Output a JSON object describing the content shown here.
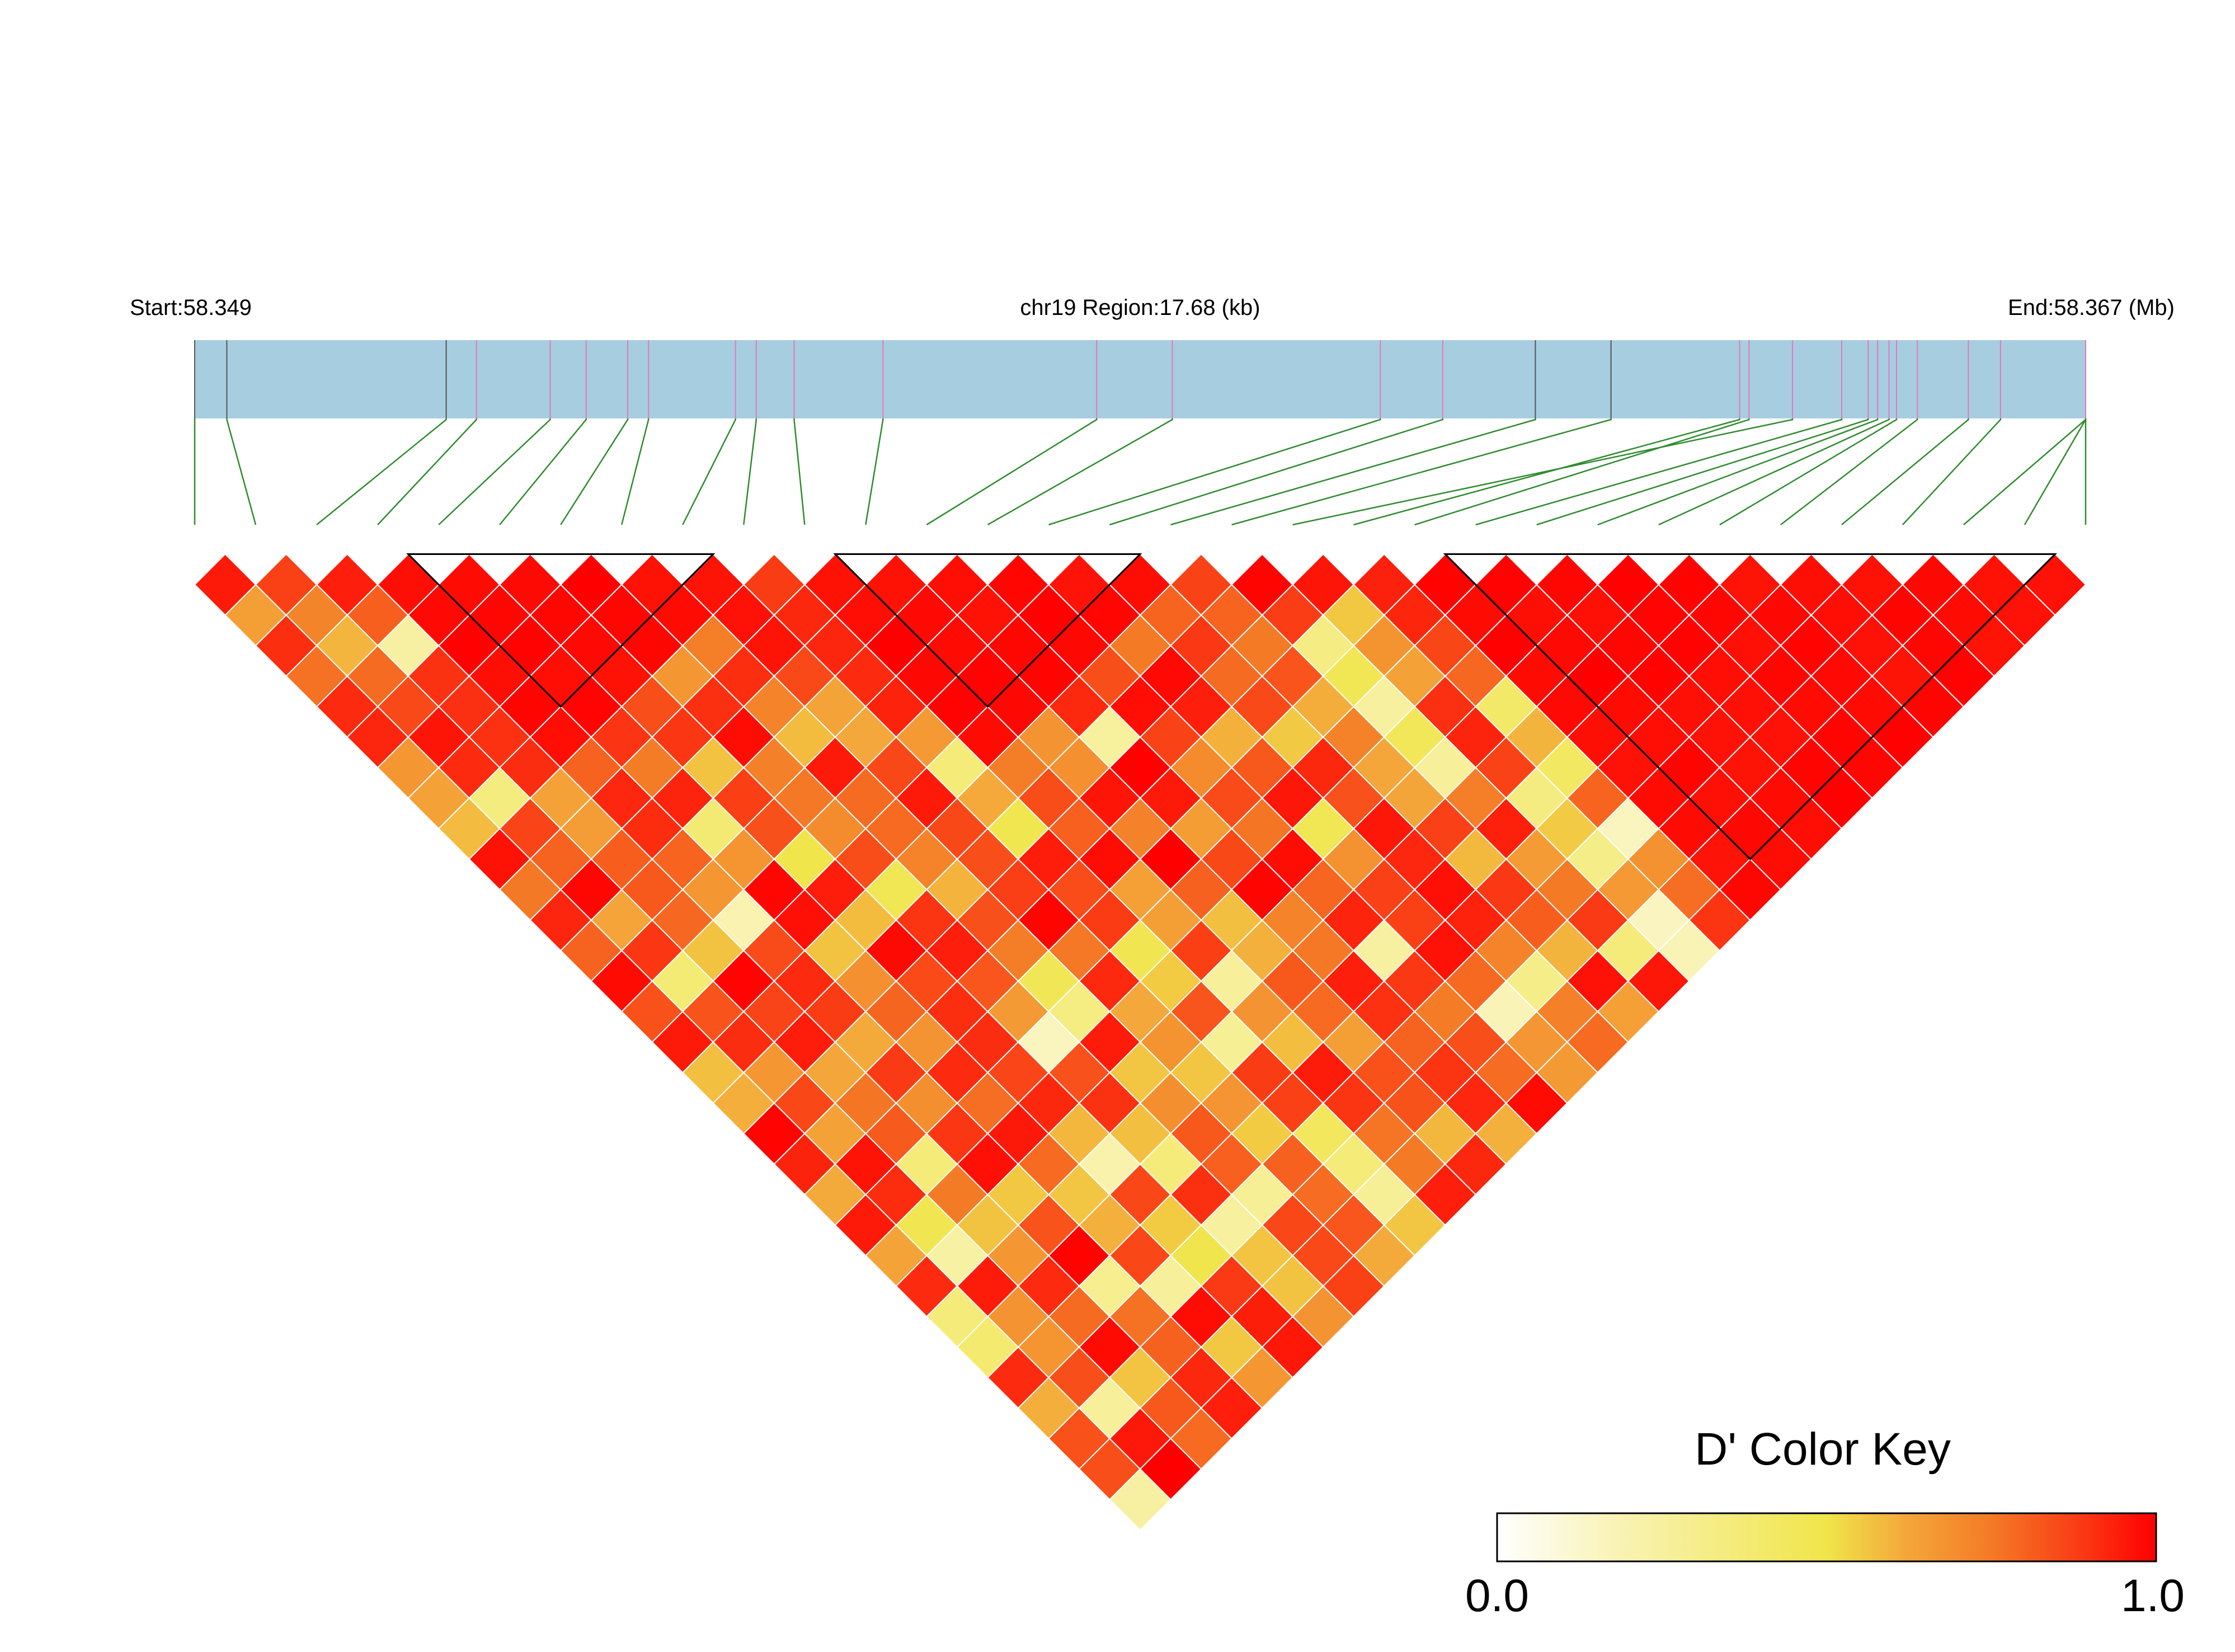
{
  "chart_data": {
    "type": "heatmap",
    "chromosome": "chr19",
    "start_label": "Start:58.349",
    "region_label": "chr19 Region:17.68 (kb)",
    "end_label": "End:58.367 (Mb)",
    "snp_count": 32,
    "snp_positions_fraction": [
      0.0,
      0.017,
      0.133,
      0.149,
      0.188,
      0.207,
      0.229,
      0.24,
      0.286,
      0.297,
      0.317,
      0.364,
      0.477,
      0.517,
      0.627,
      0.66,
      0.709,
      0.749,
      0.845,
      0.817,
      0.822,
      0.871,
      0.885,
      0.89,
      0.896,
      0.9,
      0.911,
      0.938,
      0.955,
      1.0,
      1.0,
      1.0
    ],
    "snp_marker_colors": [
      "#555555",
      "#555555",
      "#555555",
      "#e377c2",
      "#e377c2",
      "#e377c2",
      "#e377c2",
      "#e377c2",
      "#e377c2",
      "#e377c2",
      "#e377c2",
      "#e377c2",
      "#e377c2",
      "#e377c2",
      "#e377c2",
      "#e377c2",
      "#555555",
      "#555555",
      "#e377c2",
      "#e377c2",
      "#e377c2",
      "#e377c2",
      "#e377c2",
      "#e377c2",
      "#e377c2",
      "#e377c2",
      "#e377c2",
      "#e377c2",
      "#e377c2",
      "#e377c2",
      "#e377c2",
      "#e377c2"
    ],
    "ld_blocks": [
      [
        3,
        9
      ],
      [
        10,
        16
      ],
      [
        20,
        31
      ]
    ],
    "color_key": {
      "title": "D' Color Key",
      "min_label": "0.0",
      "max_label": "1.0",
      "stops": [
        "#ffffff",
        "#f9f3b6",
        "#f0e54a",
        "#f4a73a",
        "#f47a26",
        "#fb3312",
        "#ff0000"
      ]
    },
    "colors": {
      "track_fill": "#a7cde0",
      "connector": "#2e8b2e",
      "cell_border": "#ffffff",
      "block_outline": "#000000"
    }
  }
}
